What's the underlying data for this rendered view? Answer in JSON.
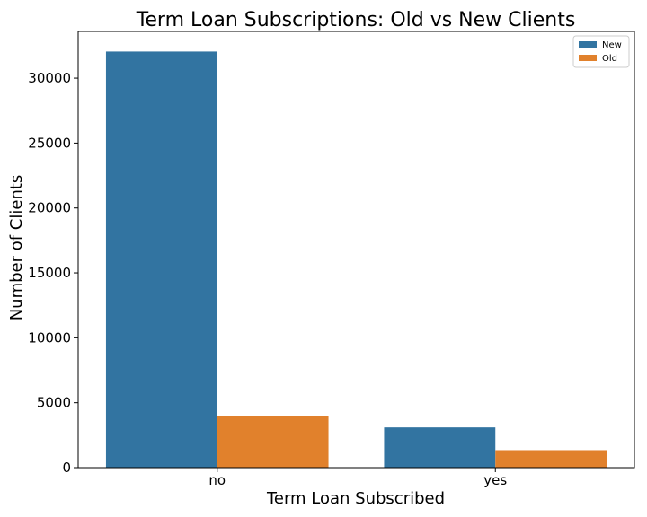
{
  "chart_data": {
    "type": "bar",
    "title": "Term Loan Subscriptions: Old vs New Clients",
    "xlabel": "Term Loan Subscribed",
    "ylabel": "Number of Clients",
    "categories": [
      "no",
      "yes"
    ],
    "series": [
      {
        "name": "New",
        "color": "#3274a1",
        "values": [
          32050,
          3100
        ]
      },
      {
        "name": "Old",
        "color": "#e1812c",
        "values": [
          4000,
          1350
        ]
      }
    ],
    "ylim": [
      0,
      33600
    ],
    "yticks": [
      0,
      5000,
      10000,
      15000,
      20000,
      25000,
      30000
    ],
    "legend_position": "top-right",
    "grid": false
  }
}
